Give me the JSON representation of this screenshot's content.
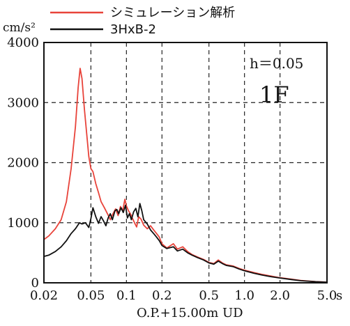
{
  "chart_data": {
    "type": "line",
    "x_scale": "log",
    "xlim": [
      0.02,
      5.0
    ],
    "ylim": [
      0,
      4000
    ],
    "x_ticks": [
      0.02,
      0.05,
      0.1,
      0.2,
      0.5,
      1.0,
      2.0,
      5.0
    ],
    "x_tick_labels": [
      "0.02",
      "0.05",
      "0.1",
      "0.2",
      "0.5",
      "1.0",
      "2.0",
      "5.0"
    ],
    "x_unit": "s",
    "y_ticks": [
      0,
      1000,
      2000,
      3000,
      4000
    ],
    "y_tick_labels": [
      "0",
      "1000",
      "2000",
      "3000",
      "4000"
    ],
    "ylabel": "cm/s²",
    "xlabel": "O.P.+15.00m UD",
    "grid": true,
    "legend_position": "top",
    "annotations": {
      "damping": "h＝0.05",
      "floor": "1F"
    },
    "series": [
      {
        "name": "シミュレーション解析",
        "color": "#e8433a",
        "points": [
          [
            0.02,
            720
          ],
          [
            0.022,
            780
          ],
          [
            0.025,
            900
          ],
          [
            0.028,
            1050
          ],
          [
            0.031,
            1350
          ],
          [
            0.034,
            1900
          ],
          [
            0.037,
            2600
          ],
          [
            0.039,
            3250
          ],
          [
            0.0405,
            3570
          ],
          [
            0.042,
            3400
          ],
          [
            0.044,
            2900
          ],
          [
            0.046,
            2500
          ],
          [
            0.048,
            2100
          ],
          [
            0.05,
            1900
          ],
          [
            0.052,
            1850
          ],
          [
            0.055,
            1650
          ],
          [
            0.058,
            1500
          ],
          [
            0.061,
            1350
          ],
          [
            0.065,
            1250
          ],
          [
            0.069,
            1150
          ],
          [
            0.073,
            1050
          ],
          [
            0.077,
            1150
          ],
          [
            0.081,
            1230
          ],
          [
            0.085,
            1120
          ],
          [
            0.089,
            1270
          ],
          [
            0.093,
            1200
          ],
          [
            0.097,
            1390
          ],
          [
            0.1,
            1280
          ],
          [
            0.104,
            1200
          ],
          [
            0.108,
            1150
          ],
          [
            0.112,
            1080
          ],
          [
            0.117,
            1000
          ],
          [
            0.122,
            930
          ],
          [
            0.127,
            1100
          ],
          [
            0.133,
            1060
          ],
          [
            0.14,
            960
          ],
          [
            0.15,
            900
          ],
          [
            0.16,
            950
          ],
          [
            0.17,
            880
          ],
          [
            0.18,
            820
          ],
          [
            0.19,
            760
          ],
          [
            0.2,
            650
          ],
          [
            0.22,
            580
          ],
          [
            0.25,
            650
          ],
          [
            0.27,
            560
          ],
          [
            0.3,
            600
          ],
          [
            0.33,
            520
          ],
          [
            0.36,
            470
          ],
          [
            0.4,
            430
          ],
          [
            0.45,
            390
          ],
          [
            0.5,
            340
          ],
          [
            0.55,
            320
          ],
          [
            0.6,
            380
          ],
          [
            0.65,
            330
          ],
          [
            0.7,
            300
          ],
          [
            0.8,
            280
          ],
          [
            0.9,
            240
          ],
          [
            1.0,
            210
          ],
          [
            1.2,
            170
          ],
          [
            1.4,
            140
          ],
          [
            1.7,
            110
          ],
          [
            2.0,
            85
          ],
          [
            2.5,
            60
          ],
          [
            3.0,
            40
          ],
          [
            4.0,
            20
          ],
          [
            5.0,
            12
          ]
        ]
      },
      {
        "name": "3HxB-2",
        "color": "#111111",
        "points": [
          [
            0.02,
            440
          ],
          [
            0.022,
            460
          ],
          [
            0.025,
            520
          ],
          [
            0.028,
            600
          ],
          [
            0.031,
            700
          ],
          [
            0.034,
            820
          ],
          [
            0.037,
            900
          ],
          [
            0.04,
            1000
          ],
          [
            0.042,
            980
          ],
          [
            0.045,
            1000
          ],
          [
            0.048,
            920
          ],
          [
            0.05,
            1070
          ],
          [
            0.052,
            1250
          ],
          [
            0.055,
            1100
          ],
          [
            0.058,
            990
          ],
          [
            0.061,
            1100
          ],
          [
            0.064,
            1030
          ],
          [
            0.067,
            950
          ],
          [
            0.07,
            1080
          ],
          [
            0.073,
            1150
          ],
          [
            0.076,
            1050
          ],
          [
            0.08,
            1200
          ],
          [
            0.083,
            1220
          ],
          [
            0.086,
            1150
          ],
          [
            0.09,
            1250
          ],
          [
            0.094,
            1170
          ],
          [
            0.098,
            1290
          ],
          [
            0.102,
            1080
          ],
          [
            0.106,
            1150
          ],
          [
            0.11,
            1050
          ],
          [
            0.115,
            1180
          ],
          [
            0.12,
            1240
          ],
          [
            0.125,
            1100
          ],
          [
            0.13,
            1320
          ],
          [
            0.135,
            1200
          ],
          [
            0.14,
            1050
          ],
          [
            0.15,
            980
          ],
          [
            0.16,
            880
          ],
          [
            0.17,
            820
          ],
          [
            0.18,
            760
          ],
          [
            0.19,
            700
          ],
          [
            0.2,
            620
          ],
          [
            0.22,
            570
          ],
          [
            0.25,
            600
          ],
          [
            0.27,
            530
          ],
          [
            0.3,
            560
          ],
          [
            0.33,
            500
          ],
          [
            0.36,
            460
          ],
          [
            0.4,
            420
          ],
          [
            0.45,
            380
          ],
          [
            0.5,
            330
          ],
          [
            0.55,
            310
          ],
          [
            0.6,
            360
          ],
          [
            0.65,
            320
          ],
          [
            0.7,
            290
          ],
          [
            0.8,
            270
          ],
          [
            0.9,
            230
          ],
          [
            1.0,
            200
          ],
          [
            1.2,
            160
          ],
          [
            1.4,
            130
          ],
          [
            1.7,
            100
          ],
          [
            2.0,
            80
          ],
          [
            2.5,
            55
          ],
          [
            3.0,
            35
          ],
          [
            4.0,
            18
          ],
          [
            5.0,
            10
          ]
        ]
      }
    ]
  }
}
